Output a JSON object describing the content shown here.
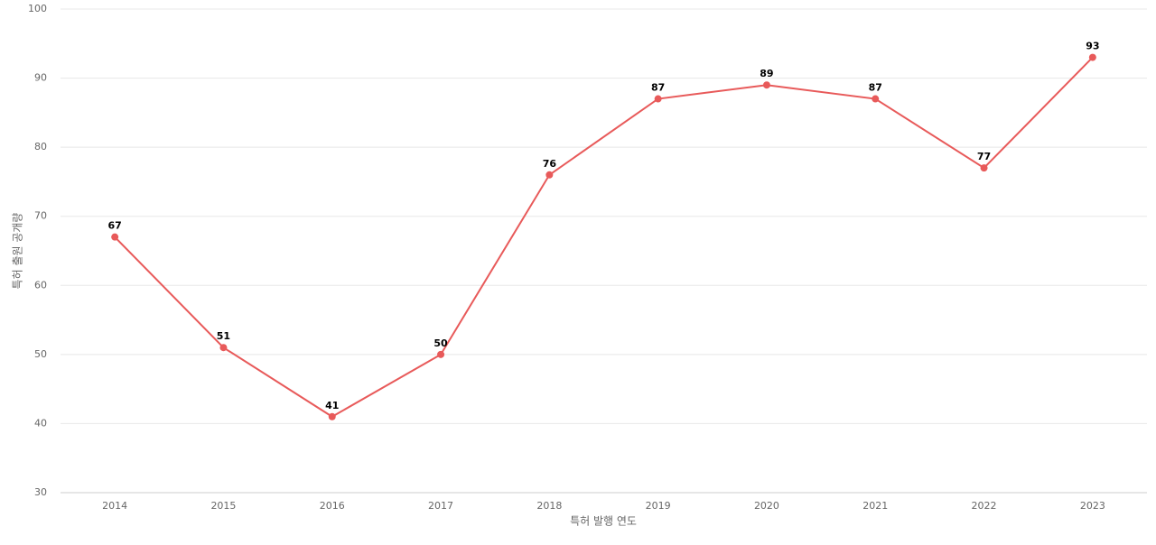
{
  "chart_data": {
    "type": "line",
    "x_label": "특허 발행 연도",
    "y_label": "특허 출원 공개량",
    "categories": [
      "2014",
      "2015",
      "2016",
      "2017",
      "2018",
      "2019",
      "2020",
      "2021",
      "2022",
      "2023"
    ],
    "series": [
      {
        "name": "특허 출원 공개량",
        "color": "#e85a5a",
        "values": [
          67,
          51,
          41,
          50,
          76,
          87,
          89,
          87,
          77,
          93
        ]
      }
    ],
    "ylim": [
      30,
      100
    ],
    "yticks": [
      30,
      40,
      50,
      60,
      70,
      80,
      90,
      100
    ],
    "grid": true
  }
}
